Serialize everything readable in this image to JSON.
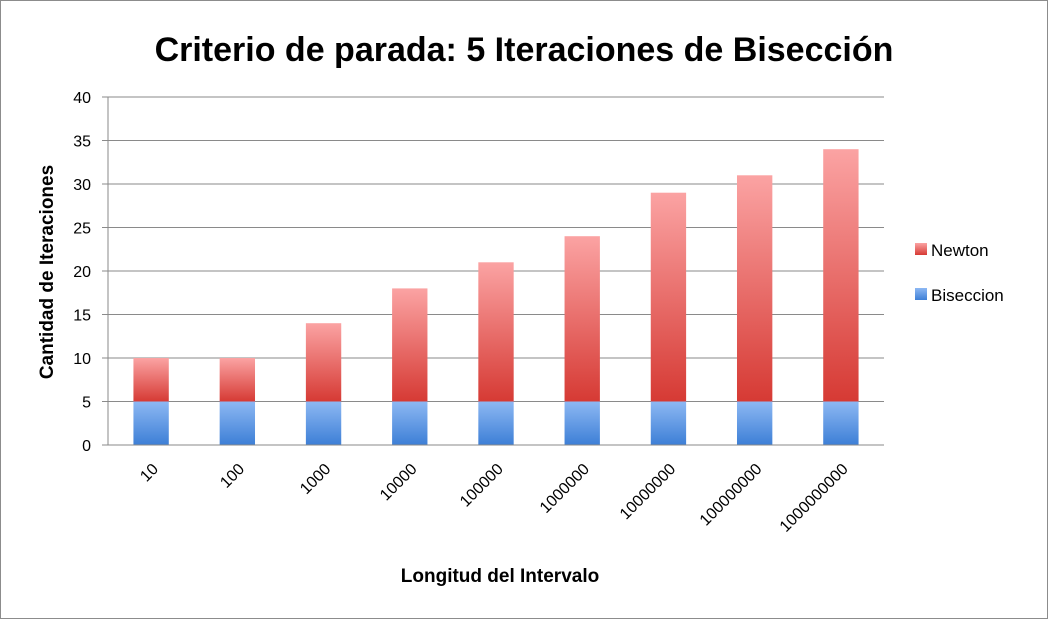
{
  "chart_data": {
    "type": "bar",
    "stacked": true,
    "title": "Criterio de parada: 5 Iteraciones de Bisección",
    "xlabel": "Longitud del Intervalo",
    "ylabel": "Cantidad de Iteraciones",
    "ylim": [
      0,
      40
    ],
    "yticks": [
      "0",
      "5",
      "10",
      "15",
      "20",
      "25",
      "30",
      "35",
      "40"
    ],
    "categories": [
      "10",
      "100",
      "1000",
      "10000",
      "100000",
      "1000000",
      "10000000",
      "100000000",
      "1000000000"
    ],
    "series": [
      {
        "name": "Biseccion",
        "values": [
          5,
          5,
          5,
          5,
          5,
          5,
          5,
          5,
          5
        ],
        "color": "#4a86d8"
      },
      {
        "name": "Newton",
        "values": [
          5,
          5,
          9,
          13,
          16,
          19,
          24,
          26,
          29
        ],
        "color": "#d9423c"
      }
    ],
    "legend_order": [
      "Newton",
      "Biseccion"
    ],
    "legend_position": "right",
    "grid": true
  }
}
